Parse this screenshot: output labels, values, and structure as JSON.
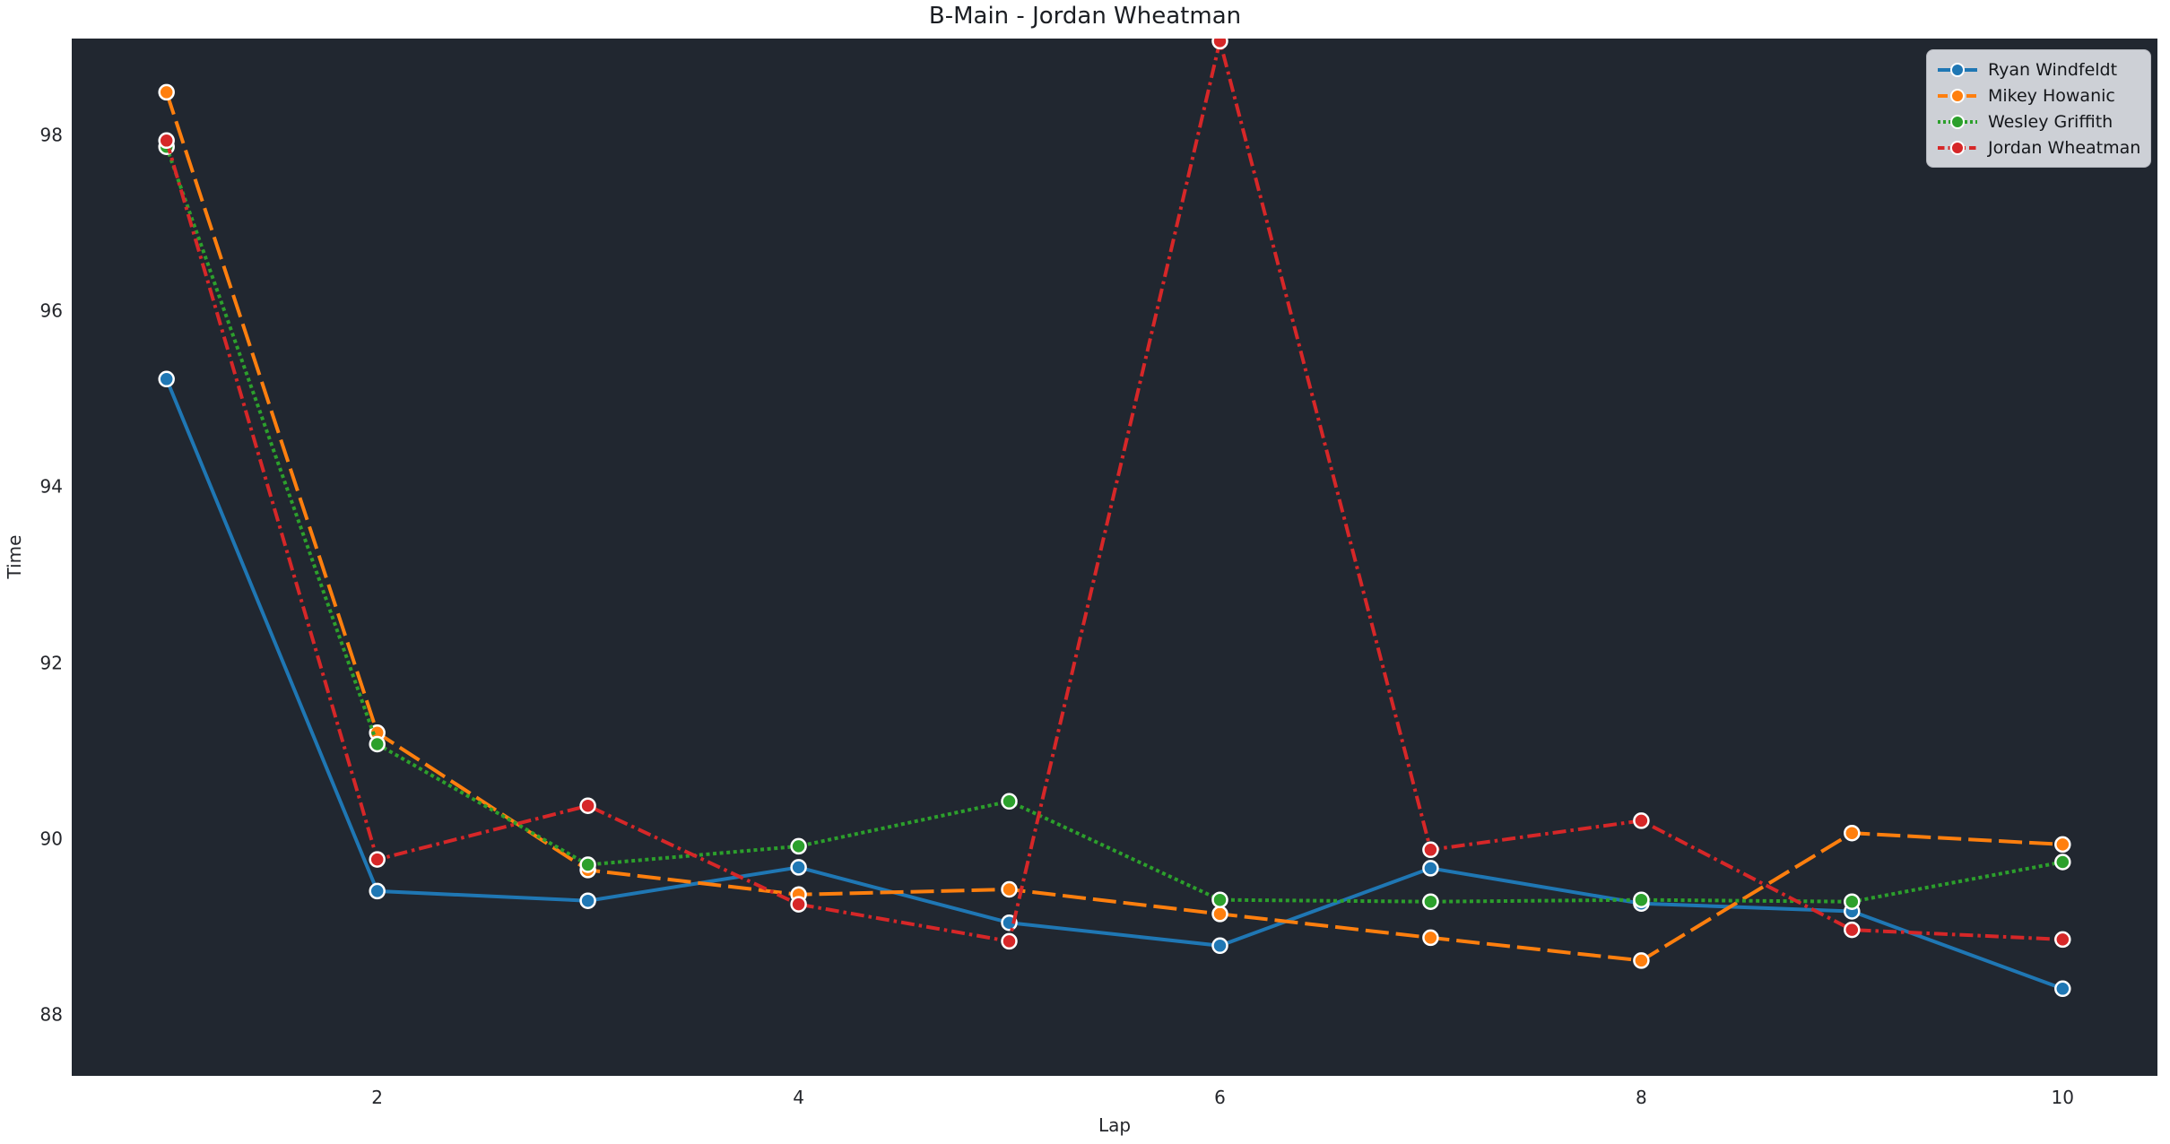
{
  "title": "B-Main - Jordan Wheatman",
  "axes": {
    "xlabel": "Lap",
    "ylabel": "Time"
  },
  "colors": {
    "figure_bg": "#ffffff",
    "axes_bg": "#212730",
    "text": "#24262b",
    "legend_bg": "#cdd0d6",
    "marker_edge": "#ffffff",
    "series_blue": "#1f77b4",
    "series_orange": "#ff7f0e",
    "series_green": "#2ca02c",
    "series_red": "#d62728"
  },
  "chart_data": {
    "type": "line",
    "title": "B-Main - Jordan Wheatman",
    "xlabel": "Lap",
    "ylabel": "Time",
    "x": [
      1,
      2,
      3,
      4,
      5,
      6,
      7,
      8,
      9,
      10
    ],
    "x_ticks": [
      2,
      4,
      6,
      8,
      10
    ],
    "y_ticks": [
      88,
      90,
      92,
      94,
      96,
      98
    ],
    "xlim": [
      0.55,
      10.45
    ],
    "ylim": [
      87.31,
      99.1
    ],
    "grid": false,
    "legend_position": "upper right",
    "marker": "circle",
    "series": [
      {
        "name": "Ryan Windfeldt",
        "color": "#1f77b4",
        "line_style": "solid",
        "values": [
          95.23,
          89.41,
          89.3,
          89.68,
          89.05,
          88.79,
          89.67,
          89.27,
          89.18,
          88.3
        ]
      },
      {
        "name": "Mikey Howanic",
        "color": "#ff7f0e",
        "line_style": "dashed",
        "values": [
          98.49,
          91.21,
          89.65,
          89.37,
          89.43,
          89.15,
          88.88,
          88.62,
          90.07,
          89.94
        ]
      },
      {
        "name": "Wesley Griffith",
        "color": "#2ca02c",
        "line_style": "dotted",
        "values": [
          97.87,
          91.08,
          89.71,
          89.92,
          90.43,
          89.31,
          89.29,
          89.31,
          89.29,
          89.74
        ]
      },
      {
        "name": "Jordan Wheatman",
        "color": "#d62728",
        "line_style": "dashdot",
        "values": [
          97.94,
          89.77,
          90.38,
          89.26,
          88.84,
          99.07,
          89.88,
          90.21,
          88.97,
          88.86
        ]
      }
    ]
  }
}
